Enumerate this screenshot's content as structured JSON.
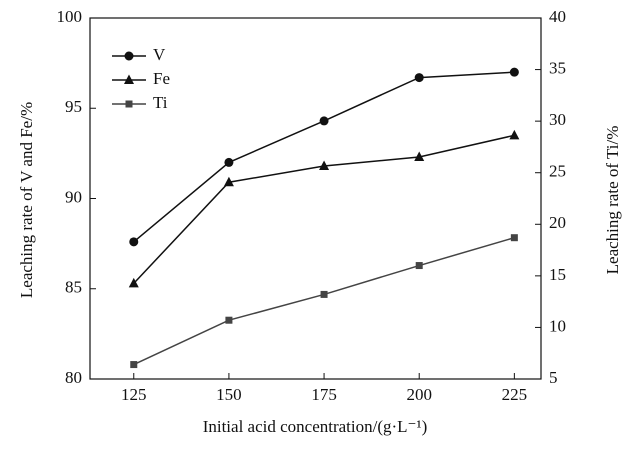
{
  "chart_data": {
    "type": "line",
    "x_label": "Initial acid concentration/(g·L⁻¹)",
    "y_label": "Leaching rate of V and Fe/%",
    "y2_label": "Leaching rate of Ti/%",
    "x": [
      125,
      150,
      175,
      200,
      225
    ],
    "xlim": [
      113.5,
      232
    ],
    "xticks": [
      125,
      150,
      175,
      200,
      225
    ],
    "ylim": [
      80,
      100
    ],
    "yticks": [
      80,
      85,
      90,
      95,
      100
    ],
    "y2lim": [
      5,
      40
    ],
    "y2ticks": [
      5,
      10,
      15,
      20,
      25,
      30,
      35,
      40
    ],
    "legend": "upper-left",
    "series": [
      {
        "name": "V",
        "color": "#111111",
        "marker": "circle",
        "values": [
          87.6,
          92.0,
          94.3,
          96.7,
          97.0
        ]
      },
      {
        "name": "Fe",
        "color": "#111111",
        "marker": "triangle",
        "values": [
          85.3,
          90.9,
          91.8,
          92.3,
          93.5
        ]
      },
      {
        "name": "Ti",
        "color": "#444444",
        "marker": "square",
        "axis": "y2",
        "values": [
          6.4,
          10.7,
          13.2,
          16.0,
          18.7
        ]
      }
    ]
  }
}
